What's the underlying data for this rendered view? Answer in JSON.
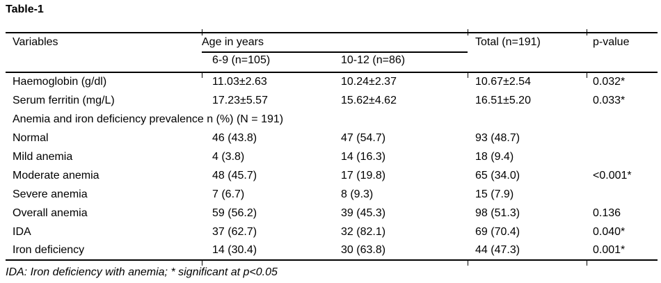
{
  "title": "Table-1",
  "table": {
    "header": {
      "variables": "Variables",
      "age_span": "Age in years",
      "age_groups": [
        "6-9 (n=105)",
        "10-12 (n=86)"
      ],
      "total": "Total (n=191)",
      "p_value": "p-value"
    },
    "rows": [
      {
        "type": "data",
        "cells": [
          "Haemoglobin (g/dl)",
          "11.03±2.63",
          "10.24±2.37",
          "10.67±2.54",
          "0.032*"
        ]
      },
      {
        "type": "data",
        "cells": [
          "Serum ferritin (mg/L)",
          "17.23±5.57",
          "15.62±4.62",
          "16.51±5.20",
          "0.033*"
        ]
      },
      {
        "type": "section",
        "label": "Anemia and iron deficiency prevalence n (%) (N = 191)"
      },
      {
        "type": "data",
        "cells": [
          "Normal",
          "46 (43.8)",
          "47 (54.7)",
          "93 (48.7)",
          ""
        ]
      },
      {
        "type": "data",
        "cells": [
          "Mild anemia",
          "4 (3.8)",
          "14 (16.3)",
          "18 (9.4)",
          ""
        ]
      },
      {
        "type": "data",
        "cells": [
          "Moderate anemia",
          "48 (45.7)",
          "17 (19.8)",
          "65 (34.0)",
          "<0.001*"
        ]
      },
      {
        "type": "data",
        "cells": [
          "Severe anemia",
          "7 (6.7)",
          "8 (9.3)",
          "15 (7.9)",
          ""
        ]
      },
      {
        "type": "data",
        "cells": [
          "Overall anemia",
          "59 (56.2)",
          "39 (45.3)",
          "98 (51.3)",
          "0.136"
        ]
      },
      {
        "type": "data",
        "cells": [
          "IDA",
          "37 (62.7)",
          "32 (82.1)",
          "69 (70.4)",
          "0.040*"
        ]
      },
      {
        "type": "data",
        "cells": [
          "Iron deficiency",
          "14 (30.4)",
          "30 (63.8)",
          "44 (47.3)",
          "0.001*"
        ]
      }
    ]
  },
  "footnote": "IDA: Iron deficiency with anemia; * significant at p<0.05",
  "colors": {
    "text": "#000000",
    "background": "#ffffff",
    "rule": "#000000"
  }
}
